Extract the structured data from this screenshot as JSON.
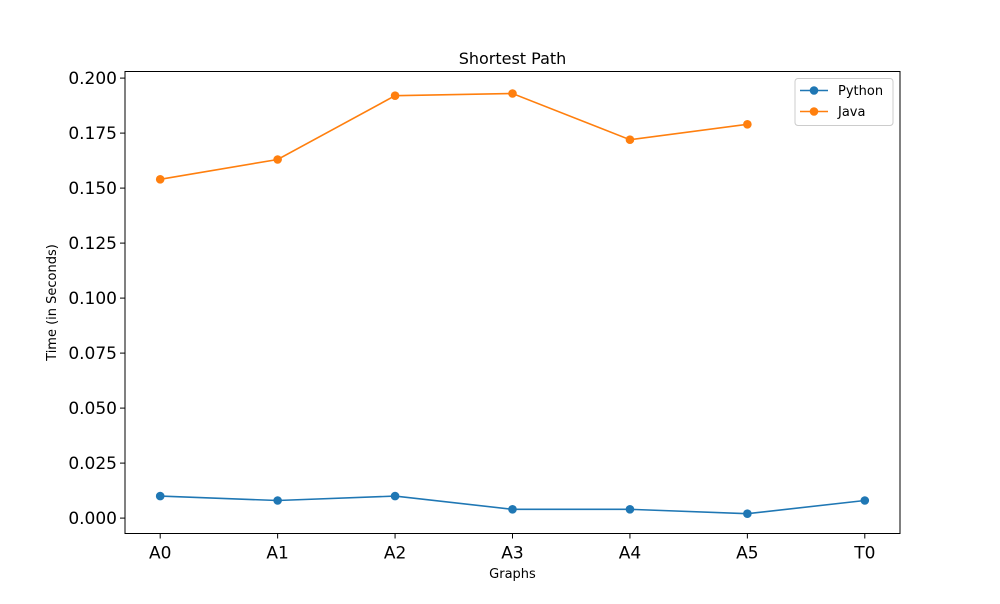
{
  "chart_data": {
    "type": "line",
    "title": "Shortest Path",
    "xlabel": "Graphs",
    "ylabel": "Time (in Seconds)",
    "categories": [
      "A0",
      "A1",
      "A2",
      "A3",
      "A4",
      "A5",
      "T0"
    ],
    "ylim": [
      -0.007,
      0.203
    ],
    "yticks": [
      0.0,
      0.025,
      0.05,
      0.075,
      0.1,
      0.125,
      0.15,
      0.175,
      0.2
    ],
    "ytick_labels": [
      "0.000",
      "0.025",
      "0.050",
      "0.075",
      "0.100",
      "0.125",
      "0.150",
      "0.175",
      "0.200"
    ],
    "grid": false,
    "legend_position": "top-right",
    "series": [
      {
        "name": "Python",
        "color": "#1f77b4",
        "values": [
          0.01,
          0.008,
          0.01,
          0.004,
          0.004,
          0.002,
          0.008
        ]
      },
      {
        "name": "Java",
        "color": "#ff7f0e",
        "values": [
          0.154,
          0.163,
          0.192,
          0.193,
          0.172,
          0.179,
          null
        ]
      }
    ]
  }
}
